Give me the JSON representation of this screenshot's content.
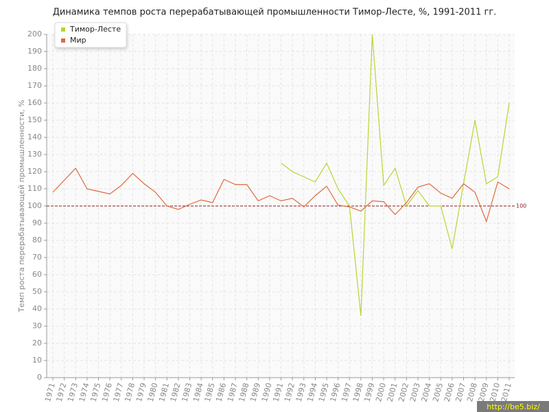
{
  "chart_data": {
    "type": "line",
    "title": "Динамика темпов роста перерабатывающей промышленности Тимор-Лесте, %, 1991-2011 гг.",
    "y_label": "Темп роста перерабатывающей промышленности, %",
    "x": [
      "1971",
      "1972",
      "1973",
      "1974",
      "1975",
      "1976",
      "1977",
      "1978",
      "1979",
      "1980",
      "1981",
      "1982",
      "1983",
      "1984",
      "1985",
      "1986",
      "1987",
      "1988",
      "1989",
      "1990",
      "1991",
      "1992",
      "1993",
      "1994",
      "1995",
      "1996",
      "1997",
      "1998",
      "1999",
      "2000",
      "2001",
      "2002",
      "2003",
      "2004",
      "2005",
      "2006",
      "2007",
      "2008",
      "2009",
      "2010",
      "2011"
    ],
    "series": [
      {
        "name": "Тимор-Лесте",
        "color": "#b8d432",
        "values": [
          null,
          null,
          null,
          null,
          null,
          null,
          null,
          null,
          null,
          null,
          null,
          null,
          null,
          null,
          null,
          null,
          null,
          null,
          null,
          null,
          125,
          120,
          117,
          114,
          125,
          110,
          100,
          36,
          200,
          112,
          122,
          100,
          109,
          100,
          100,
          75,
          113,
          150,
          113,
          117,
          160
        ]
      },
      {
        "name": "Мир",
        "color": "#e0693c",
        "values": [
          108,
          115,
          122,
          110,
          108.5,
          107,
          112,
          119,
          113,
          108,
          100,
          98,
          101,
          103.5,
          102,
          115.5,
          112.5,
          112.5,
          103,
          106,
          103,
          104.5,
          99.5,
          106,
          111.5,
          100.5,
          99.5,
          97,
          103,
          102.5,
          95,
          102,
          111,
          113,
          107.5,
          104.5,
          113,
          108,
          91,
          114,
          110
        ]
      }
    ],
    "ylim": [
      0,
      200
    ],
    "yticks": [
      0,
      10,
      20,
      30,
      40,
      50,
      60,
      70,
      80,
      90,
      100,
      110,
      120,
      130,
      140,
      150,
      160,
      170,
      180,
      190,
      200
    ],
    "grid": true,
    "legend": "top-left",
    "reference_line": 100,
    "source": "http://be5.biz/"
  }
}
